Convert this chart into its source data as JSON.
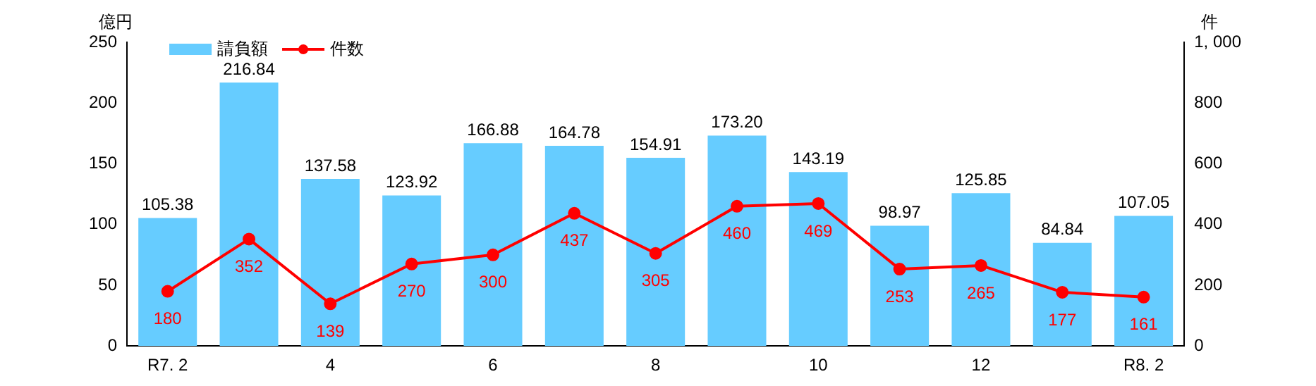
{
  "chart_data": {
    "type": "bar",
    "categories": [
      "R7. 2",
      null,
      "4",
      null,
      "6",
      null,
      "8",
      null,
      "10",
      null,
      "12",
      null,
      "R8. 2"
    ],
    "ylabel": "億円",
    "y2label": "件",
    "ylim": [
      0,
      250
    ],
    "yticks": [
      0,
      50,
      100,
      150,
      200,
      250
    ],
    "y2lim": [
      0,
      1000
    ],
    "y2ticks": [
      0,
      200,
      400,
      600,
      800,
      {
        "value": 1000,
        "label": "1, 000"
      }
    ],
    "legend": "top left",
    "grid": false,
    "marker": "circle",
    "series": [
      {
        "name": "請負額",
        "color": "#66ccff",
        "values": [
          105.38,
          216.84,
          137.58,
          123.92,
          166.88,
          164.78,
          154.91,
          173.2,
          143.19,
          98.97,
          125.85,
          84.84,
          107.05
        ],
        "value_labels": [
          "105.38",
          "216.84",
          "137.58",
          "123.92",
          "166.88",
          "164.78",
          "154.91",
          "173.20",
          "143.19",
          "98.97",
          "125.85",
          "84.84",
          "107.05"
        ]
      },
      {
        "name": "件数",
        "type": "line",
        "axis": "y2",
        "color": "#ff0000",
        "values": [
          180,
          352,
          139,
          270,
          300,
          437,
          305,
          460,
          469,
          253,
          265,
          177,
          161
        ],
        "value_labels": [
          "180",
          "352",
          "139",
          "270",
          "300",
          "437",
          "305",
          "460",
          "469",
          "253",
          "265",
          "177",
          "161"
        ]
      }
    ]
  }
}
